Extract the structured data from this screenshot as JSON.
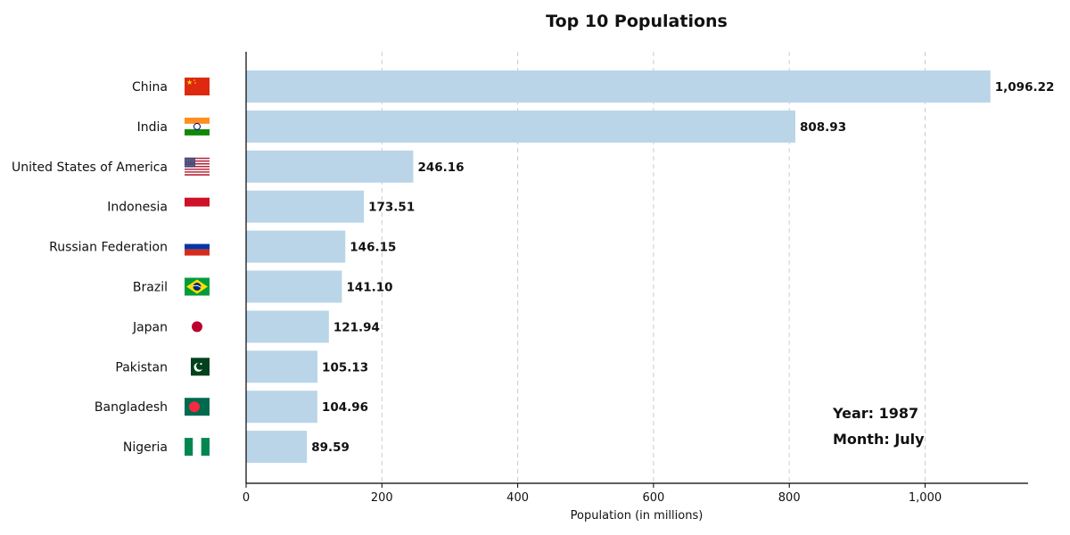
{
  "chart_data": {
    "type": "bar",
    "orientation": "horizontal",
    "title": "Top 10 Populations",
    "xlabel": "Population (in millions)",
    "ylabel": "",
    "xlim": [
      0,
      1150
    ],
    "xticks": [
      0,
      200,
      400,
      600,
      800,
      1000
    ],
    "xtick_labels": [
      "0",
      "200",
      "400",
      "600",
      "800",
      "1,000"
    ],
    "grid": "x-dashed",
    "bar_color": "#bad5e8",
    "categories": [
      "China",
      "India",
      "United States of America",
      "Indonesia",
      "Russian Federation",
      "Brazil",
      "Japan",
      "Pakistan",
      "Bangladesh",
      "Nigeria"
    ],
    "values": [
      1096.22,
      808.93,
      246.16,
      173.51,
      146.15,
      141.1,
      121.94,
      105.13,
      104.96,
      89.59
    ],
    "value_labels": [
      "1,096.22",
      "808.93",
      "246.16",
      "173.51",
      "146.15",
      "141.10",
      "121.94",
      "105.13",
      "104.96",
      "89.59"
    ],
    "flag_icons": [
      "flag-china-icon",
      "flag-india-icon",
      "flag-usa-icon",
      "flag-indonesia-icon",
      "flag-russia-icon",
      "flag-brazil-icon",
      "flag-japan-icon",
      "flag-pakistan-icon",
      "flag-bangladesh-icon",
      "flag-nigeria-icon"
    ],
    "annotations": {
      "year": "Year: 1987",
      "month": "Month: July"
    }
  }
}
